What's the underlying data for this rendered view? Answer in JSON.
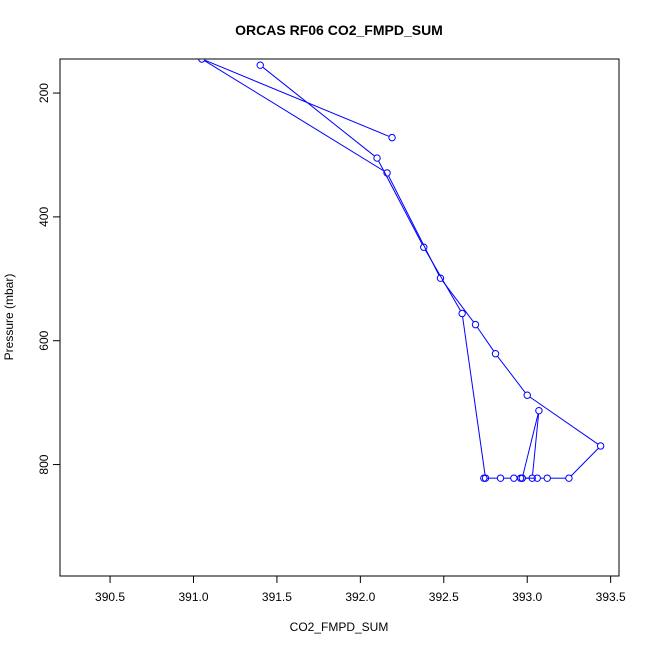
{
  "chart_data": {
    "type": "line",
    "title": "ORCAS RF06 CO2_FMPD_SUM",
    "xlabel": "CO2_FMPD_SUM",
    "ylabel": "Pressure (mbar)",
    "xlim": [
      390.2,
      393.55
    ],
    "ylim": [
      980,
      145
    ],
    "y_inverted": true,
    "xticks": [
      390.5,
      391.0,
      391.5,
      392.0,
      392.5,
      393.0,
      393.5
    ],
    "xtick_labels": [
      "390.5",
      "391.0",
      "391.5",
      "392.0",
      "392.5",
      "393.0",
      "393.5"
    ],
    "yticks": [
      200,
      400,
      600,
      800
    ],
    "ytick_labels": [
      "200",
      "400",
      "600",
      "800"
    ],
    "grid": false,
    "series": [
      {
        "marker": "open-circle",
        "color": "#0000ff",
        "points": [
          {
            "x": 391.4,
            "y": 155
          },
          {
            "x": 392.1,
            "y": 305
          },
          {
            "x": 392.38,
            "y": 449
          },
          {
            "x": 392.61,
            "y": 556
          },
          {
            "x": 392.75,
            "y": 822
          },
          {
            "x": 392.74,
            "y": 822
          },
          {
            "x": 392.84,
            "y": 822
          },
          {
            "x": 392.92,
            "y": 822
          },
          {
            "x": 392.96,
            "y": 822
          },
          {
            "x": 392.97,
            "y": 822
          },
          {
            "x": 393.03,
            "y": 822
          },
          {
            "x": 393.07,
            "y": 713
          },
          {
            "x": 392.97,
            "y": 822
          },
          {
            "x": 393.06,
            "y": 822
          },
          {
            "x": 393.12,
            "y": 822
          },
          {
            "x": 393.25,
            "y": 822
          },
          {
            "x": 393.44,
            "y": 770
          },
          {
            "x": 393.0,
            "y": 688
          },
          {
            "x": 392.81,
            "y": 621
          },
          {
            "x": 392.69,
            "y": 574
          },
          {
            "x": 392.48,
            "y": 499
          },
          {
            "x": 392.16,
            "y": 329
          },
          {
            "x": 391.05,
            "y": 145
          },
          {
            "x": 392.19,
            "y": 272
          }
        ]
      }
    ]
  }
}
